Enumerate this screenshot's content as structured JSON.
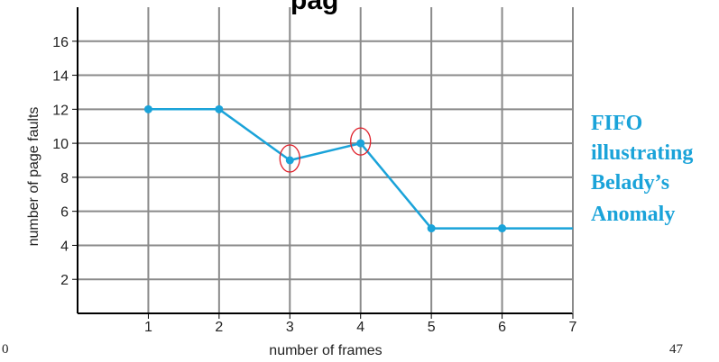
{
  "page": {
    "title_fragment": "pag",
    "slide_left": "0",
    "slide_number": "47"
  },
  "colors": {
    "series": "#1aa3d9",
    "grid": "#8a8a8a",
    "axis": "#000000",
    "highlight": "#e0202a",
    "annotation": "#1aa3d9"
  },
  "annotation": {
    "lines": [
      "FIFO",
      "illustrating",
      "Belady’s",
      "Anomaly"
    ]
  },
  "chart_data": {
    "type": "line",
    "title": "",
    "xlabel": "number of frames",
    "ylabel": "number of page faults",
    "x": [
      1,
      2,
      3,
      4,
      5,
      6,
      7
    ],
    "series": [
      {
        "values": [
          12,
          12,
          9,
          10,
          5,
          5,
          5
        ]
      }
    ],
    "markers": [
      1,
      2,
      3,
      4,
      5,
      6
    ],
    "highlighted_x": [
      3,
      4
    ],
    "xlim": [
      0,
      7
    ],
    "ylim": [
      0,
      18
    ],
    "xticks": [
      1,
      2,
      3,
      4,
      5,
      6,
      7
    ],
    "yticks": [
      2,
      4,
      6,
      8,
      10,
      12,
      14,
      16
    ],
    "grid": true,
    "legend": "none"
  }
}
